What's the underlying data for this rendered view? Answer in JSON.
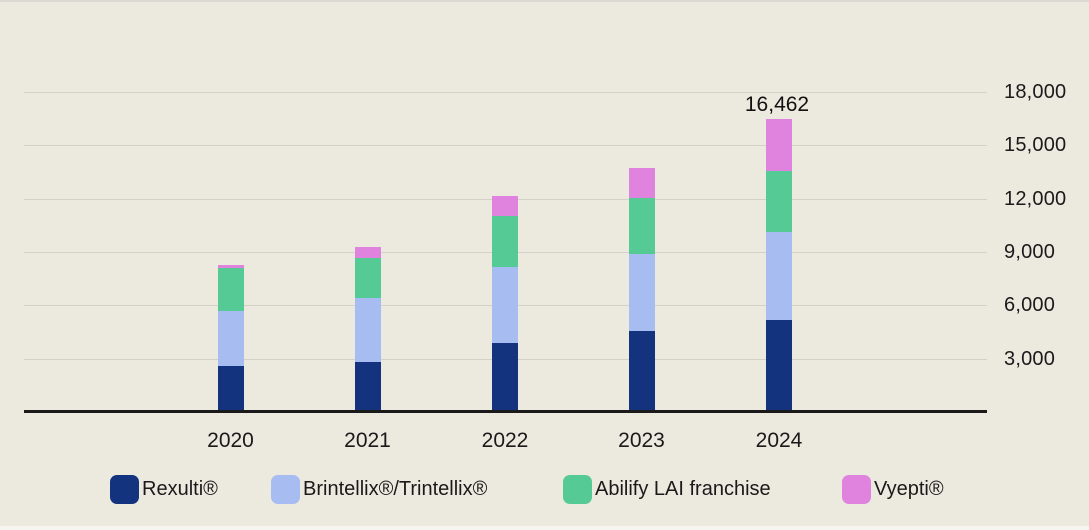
{
  "page": {
    "background_color": "#ece9df",
    "gridline_color": "#d4d1c8",
    "axis_color": "#1a1a1a",
    "text_color": "#1a1a1a"
  },
  "chart_data": {
    "type": "bar",
    "stacked": true,
    "title": "",
    "xlabel": "",
    "ylabel": "",
    "categories": [
      "2020",
      "2021",
      "2022",
      "2023",
      "2024"
    ],
    "series": [
      {
        "name": "Rexulti®",
        "color": "#14337e",
        "values": [
          2600,
          2830,
          3900,
          4560,
          5190
        ]
      },
      {
        "name": "Brintellix®/Trintellix®",
        "color": "#a7bdf1",
        "values": [
          3080,
          3570,
          4240,
          4310,
          4920
        ]
      },
      {
        "name": "Abilify LAI franchise",
        "color": "#55ca95",
        "values": [
          2420,
          2250,
          2890,
          3150,
          3440
        ]
      },
      {
        "name": "Vyepti®",
        "color": "#e083de",
        "values": [
          170,
          620,
          1125,
          1730,
          2912
        ]
      }
    ],
    "totals": [
      8270,
      9270,
      12155,
      13750,
      16462
    ],
    "data_labels": [
      {
        "category": "2024",
        "text": "16,462"
      }
    ],
    "ylim": [
      0,
      18000
    ],
    "yticks": [
      3000,
      6000,
      9000,
      12000,
      15000,
      18000
    ],
    "ytick_labels": [
      "3,000",
      "6,000",
      "9,000",
      "12,000",
      "15,000",
      "18,000"
    ],
    "ytick_side": "right",
    "grid": true,
    "legend_position": "bottom"
  }
}
